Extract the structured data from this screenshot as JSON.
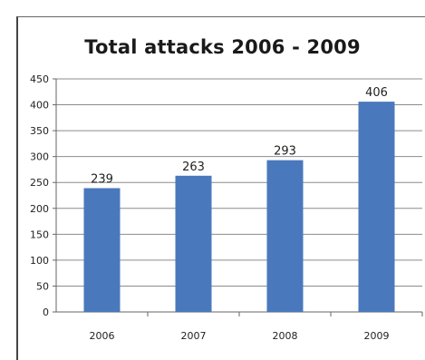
{
  "chart_data": {
    "type": "bar",
    "title": "Total attacks 2006 - 2009",
    "categories": [
      "2006",
      "2007",
      "2008",
      "2009"
    ],
    "values": [
      239,
      263,
      293,
      406
    ],
    "ylim": [
      0,
      450
    ],
    "yticks": [
      0,
      50,
      100,
      150,
      200,
      250,
      300,
      350,
      400,
      450
    ],
    "xlabel": "",
    "ylabel": "",
    "grid": true,
    "legend": "none",
    "bar_color": "#4a78bd",
    "grid_color": "#8c8c8c"
  }
}
